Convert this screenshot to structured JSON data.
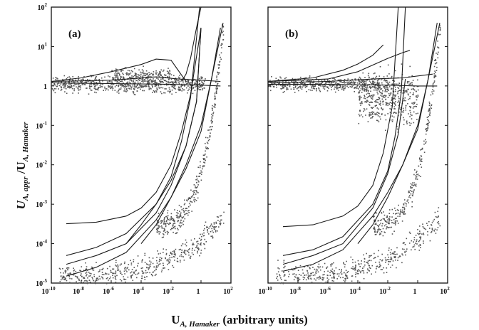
{
  "chart_data": [
    {
      "panel_label": "(a)",
      "type": "scatter",
      "scale": "log-log",
      "xlim": [
        1e-10,
        100
      ],
      "ylim": [
        1e-05,
        100
      ],
      "xticks": [
        -10,
        -8,
        -6,
        -4,
        -2,
        0,
        2
      ],
      "yticks": [
        -5,
        -4,
        -3,
        -2,
        -1,
        0,
        1,
        2
      ],
      "scatter_clusters": [
        {
          "x_log": [
            -10,
            0.3
          ],
          "y_log": [
            -0.25,
            0.35
          ],
          "n": 700
        },
        {
          "x_log": [
            -6,
            -2
          ],
          "y_log": [
            0.0,
            0.55
          ],
          "n": 200
        },
        {
          "x_log": [
            -9.5,
            1.5
          ],
          "y_log": [
            -4.8,
            -3.3
          ],
          "n": 500,
          "follows_curve": true
        },
        {
          "x_log": [
            -3,
            1.5
          ],
          "y_log": [
            -3.5,
            1.6
          ],
          "n": 350,
          "follows_curve": true
        }
      ],
      "series": [
        {
          "x": [
            1e-10,
            1e-08,
            1e-06,
            0.0001,
            0.001,
            0.01,
            0.1
          ],
          "y": [
            1.3,
            1.6,
            2.3,
            3.5,
            4.8,
            4.5,
            1.3
          ]
        },
        {
          "x": [
            1e-10,
            1e-06,
            0.001,
            0.03,
            1,
            20
          ],
          "y": [
            1.3,
            1.4,
            1.7,
            1.5,
            1.4,
            1.3
          ]
        },
        {
          "x": [
            1e-10,
            1e-06,
            0.01,
            1,
            20
          ],
          "y": [
            1.2,
            1.15,
            1.1,
            1.05,
            1.0
          ]
        },
        {
          "x": [
            1e-09,
            1e-07,
            1e-05,
            0.0001,
            0.001,
            0.01,
            0.05,
            0.2,
            1
          ],
          "y": [
            0.00032,
            0.00035,
            0.0005,
            0.0008,
            0.002,
            0.01,
            0.07,
            0.6,
            30
          ]
        },
        {
          "x": [
            1e-09,
            1e-07,
            1e-05,
            0.001,
            0.01,
            0.1,
            0.5,
            1
          ],
          "y": [
            5e-05,
            8e-05,
            0.00018,
            0.001,
            0.004,
            0.03,
            0.4,
            30
          ]
        },
        {
          "x": [
            1e-09,
            1e-07,
            1e-05,
            0.001,
            0.01,
            0.1,
            0.5,
            1
          ],
          "y": [
            3e-05,
            5e-05,
            0.0001,
            0.0006,
            0.003,
            0.03,
            0.4,
            30
          ]
        },
        {
          "x": [
            1e-09,
            1e-07,
            1e-05,
            0.001,
            0.01,
            0.1,
            1,
            5,
            20
          ],
          "y": [
            1.5e-05,
            2.5e-05,
            6e-05,
            0.0004,
            0.0015,
            0.008,
            0.07,
            1.5,
            30
          ]
        },
        {
          "x": [
            1e-05,
            0.0001,
            0.001,
            0.01,
            0.05,
            0.2,
            0.8
          ],
          "y": [
            0.0001,
            0.0003,
            0.001,
            0.005,
            0.04,
            0.5,
            100
          ]
        },
        {
          "x": [
            0.0001,
            0.001,
            0.01,
            0.1,
            1,
            5,
            30
          ],
          "y": [
            0.0001,
            0.0003,
            0.0015,
            0.01,
            0.1,
            1.5,
            40
          ]
        },
        {
          "x": [
            0.05,
            0.1,
            0.2,
            0.5,
            1
          ],
          "y": [
            1.3,
            2,
            5,
            30,
            100
          ]
        }
      ]
    },
    {
      "panel_label": "(b)",
      "type": "scatter",
      "scale": "log-log",
      "xlim": [
        1e-10,
        100
      ],
      "ylim": [
        1e-05,
        100
      ],
      "xticks": [
        -10,
        -8,
        -6,
        -4,
        -2,
        0,
        2
      ],
      "yticks": [
        -5,
        -4,
        -3,
        -2,
        -1,
        0,
        1,
        2
      ],
      "scatter_clusters": [
        {
          "x_log": [
            -10,
            -2
          ],
          "y_log": [
            -0.2,
            0.3
          ],
          "n": 500
        },
        {
          "x_log": [
            -4,
            0
          ],
          "y_log": [
            -1.3,
            0.7
          ],
          "n": 450
        },
        {
          "x_log": [
            -9.5,
            1.5
          ],
          "y_log": [
            -4.8,
            -3.3
          ],
          "n": 450,
          "follows_curve": true
        },
        {
          "x_log": [
            -3,
            1.5
          ],
          "y_log": [
            -3.5,
            1.6
          ],
          "n": 300,
          "follows_curve": true
        }
      ],
      "series": [
        {
          "x": [
            1e-10,
            1e-07,
            1e-05,
            0.0001,
            0.001,
            0.005
          ],
          "y": [
            1.3,
            1.6,
            2.5,
            3.6,
            6,
            11
          ]
        },
        {
          "x": [
            1e-10,
            1e-06,
            0.0001,
            0.01,
            0.1,
            0.3
          ],
          "y": [
            1.3,
            1.5,
            2.3,
            5,
            7,
            8
          ]
        },
        {
          "x": [
            1e-10,
            1e-06,
            0.001,
            0.1,
            10
          ],
          "y": [
            1.2,
            1.3,
            1.5,
            1.6,
            2.0
          ]
        },
        {
          "x": [
            1e-10,
            1e-06,
            0.01,
            1,
            20
          ],
          "y": [
            1.1,
            1.1,
            1.05,
            1.0,
            1.0
          ]
        },
        {
          "x": [
            1e-09,
            1e-07,
            1e-05,
            0.0001,
            0.001,
            0.005,
            0.02,
            0.05
          ],
          "y": [
            0.00027,
            0.0003,
            0.0005,
            0.0009,
            0.003,
            0.02,
            0.3,
            100
          ]
        },
        {
          "x": [
            1e-09,
            1e-07,
            1e-05,
            0.001,
            0.01,
            0.03,
            0.08,
            0.15
          ],
          "y": [
            5e-05,
            7e-05,
            0.00015,
            0.001,
            0.007,
            0.05,
            0.7,
            100
          ]
        },
        {
          "x": [
            1e-09,
            1e-07,
            1e-05,
            0.001,
            0.01,
            0.05,
            0.15
          ],
          "y": [
            3e-05,
            5e-05,
            0.0001,
            0.0008,
            0.006,
            0.06,
            1.5
          ]
        },
        {
          "x": [
            1e-09,
            1e-07,
            1e-05,
            0.001,
            0.01,
            0.1,
            1,
            5,
            20
          ],
          "y": [
            2e-05,
            3e-05,
            7e-05,
            0.0005,
            0.002,
            0.01,
            0.08,
            1.5,
            40
          ]
        },
        {
          "x": [
            0.0001,
            0.001,
            0.01,
            0.1,
            1,
            5,
            30
          ],
          "y": [
            0.0001,
            0.0003,
            0.0015,
            0.01,
            0.1,
            1.5,
            40
          ]
        }
      ]
    }
  ],
  "labels": {
    "ylabel_main": "U",
    "ylabel_sub1": "A, appr",
    "ylabel_mid": " /U",
    "ylabel_sub2": "A, Hamaker",
    "xlabel_main": "U",
    "xlabel_sub": "A, Hamaker",
    "xlabel_tail": " (arbitrary units)"
  },
  "colors": {
    "ink": "#111111",
    "scatter": "#555555"
  }
}
